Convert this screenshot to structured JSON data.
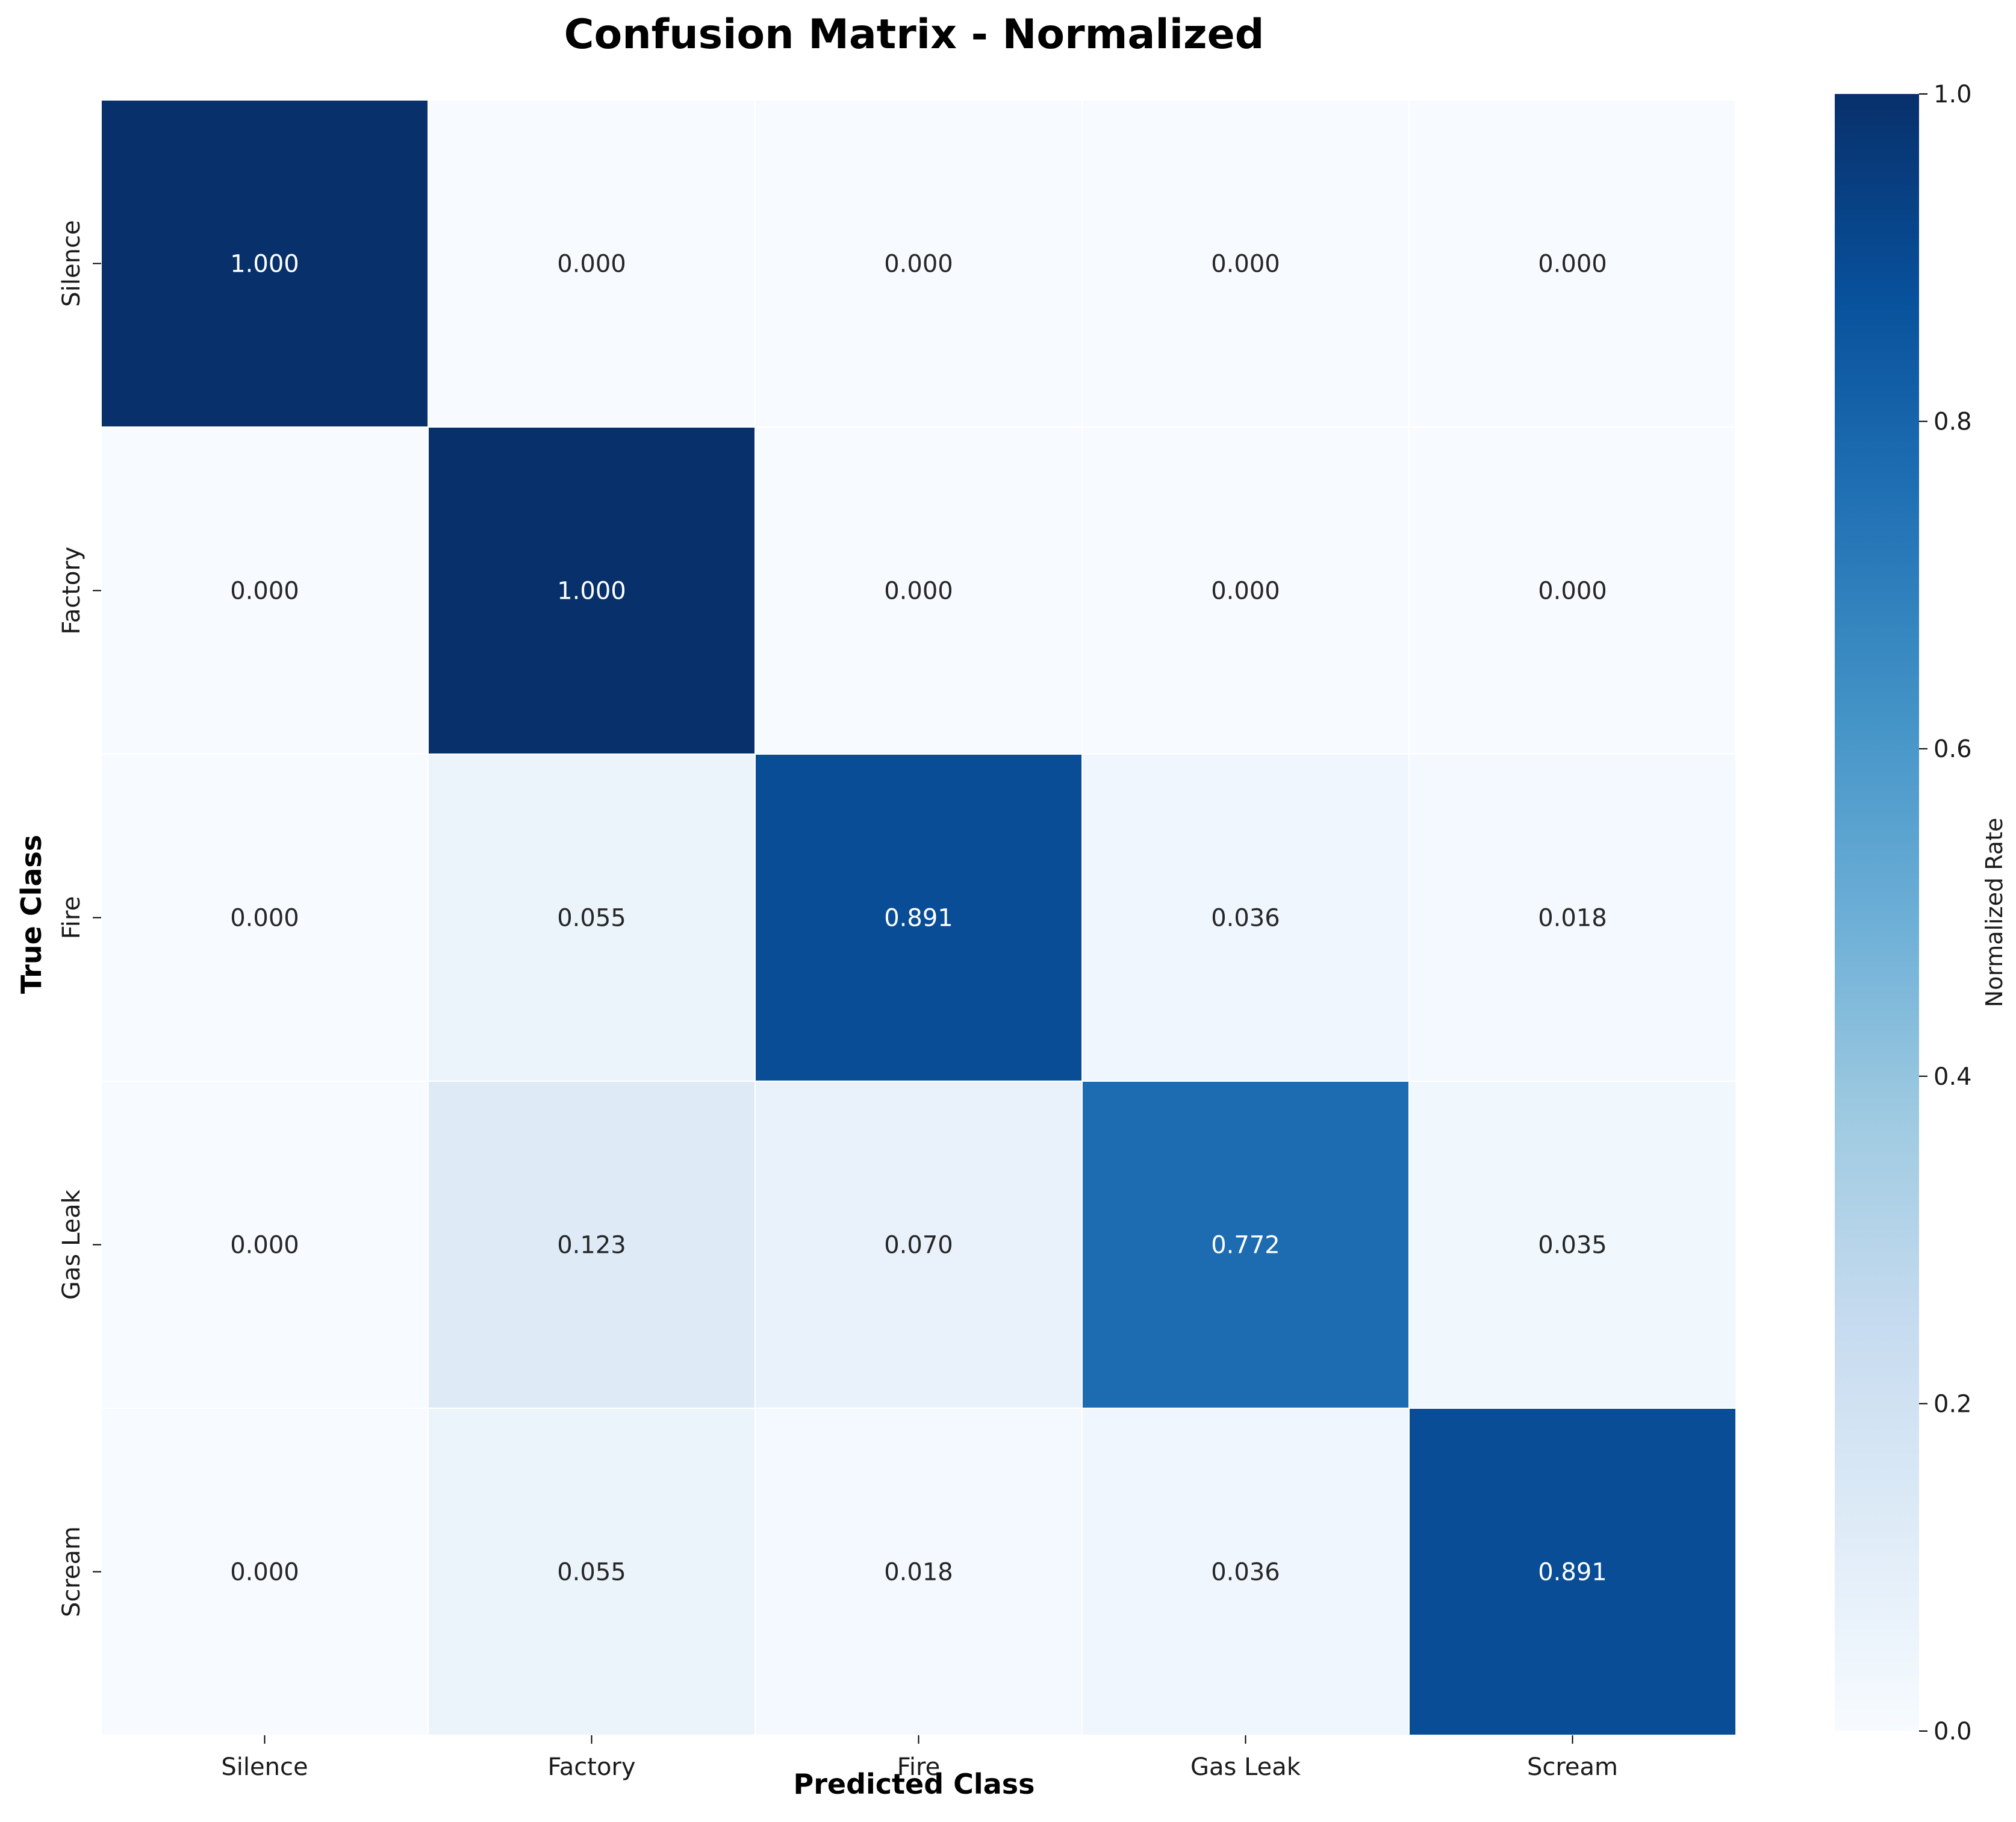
{
  "chart_data": {
    "type": "heatmap",
    "title": "Confusion Matrix - Normalized",
    "xlabel": "Predicted Class",
    "ylabel": "True Class",
    "x_categories": [
      "Silence",
      "Factory",
      "Fire",
      "Gas Leak",
      "Scream"
    ],
    "y_categories": [
      "Silence",
      "Factory",
      "Fire",
      "Gas Leak",
      "Scream"
    ],
    "values": [
      [
        1.0,
        0.0,
        0.0,
        0.0,
        0.0
      ],
      [
        0.0,
        1.0,
        0.0,
        0.0,
        0.0
      ],
      [
        0.0,
        0.055,
        0.891,
        0.036,
        0.018
      ],
      [
        0.0,
        0.123,
        0.07,
        0.772,
        0.035
      ],
      [
        0.0,
        0.055,
        0.018,
        0.036,
        0.891
      ]
    ],
    "value_labels": [
      [
        "1.000",
        "0.000",
        "0.000",
        "0.000",
        "0.000"
      ],
      [
        "0.000",
        "1.000",
        "0.000",
        "0.000",
        "0.000"
      ],
      [
        "0.000",
        "0.055",
        "0.891",
        "0.036",
        "0.018"
      ],
      [
        "0.000",
        "0.123",
        "0.070",
        "0.772",
        "0.035"
      ],
      [
        "0.000",
        "0.055",
        "0.018",
        "0.036",
        "0.891"
      ]
    ],
    "colorbar": {
      "label": "Normalized Rate",
      "range": [
        0.0,
        1.0
      ],
      "ticks": [
        "0.0",
        "0.2",
        "0.4",
        "0.6",
        "0.8",
        "1.0"
      ],
      "colormap": "Blues"
    }
  }
}
